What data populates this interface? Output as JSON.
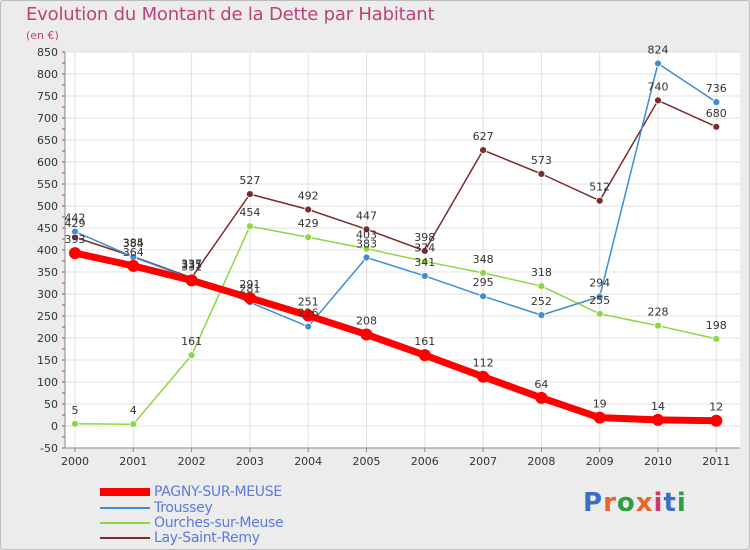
{
  "title": "Evolution du Montant de la Dette par Habitant",
  "subtitle": "(en €)",
  "logo": "Proxiti",
  "chart_data": {
    "type": "line",
    "x": [
      "2000",
      "2001",
      "2002",
      "2003",
      "2004",
      "2005",
      "2006",
      "2007",
      "2008",
      "2009",
      "2010",
      "2011"
    ],
    "yticks": [
      -50,
      0,
      50,
      100,
      150,
      200,
      250,
      300,
      350,
      400,
      450,
      500,
      550,
      600,
      650,
      700,
      750,
      800,
      850
    ],
    "ylim": [
      -50,
      850
    ],
    "grid": true,
    "legend_position": "bottom-left",
    "series": [
      {
        "name": "PAGNY-SUR-MEUSE",
        "color": "#ff0000",
        "values": [
          393,
          364,
          331,
          291,
          251,
          208,
          161,
          112,
          64,
          19,
          14,
          12
        ]
      },
      {
        "name": "Troussey",
        "color": "#3e8ed1",
        "values": [
          442,
          384,
          335,
          281,
          226,
          383,
          341,
          295,
          252,
          294,
          824,
          736
        ]
      },
      {
        "name": "Ourches-sur-Meuse",
        "color": "#8fd645",
        "values": [
          5,
          4,
          161,
          454,
          429,
          403,
          374,
          348,
          318,
          255,
          228,
          198
        ]
      },
      {
        "name": "Lay-Saint-Remy",
        "color": "#7b2d2d",
        "values": [
          429,
          385,
          337,
          527,
          492,
          447,
          398,
          627,
          573,
          512,
          740,
          680
        ]
      }
    ],
    "data_labels": [
      [
        "393",
        "364",
        "331",
        "291",
        "251",
        "208",
        "161",
        "112",
        "64",
        "19",
        "14",
        "12"
      ],
      [
        "442",
        "384",
        "335",
        "281",
        "226",
        "383",
        "341",
        "295",
        "252",
        "294",
        "824",
        "736"
      ],
      [
        "5",
        "4",
        "161",
        "454",
        "429",
        "403",
        "374",
        "348",
        "318",
        "255",
        "228",
        "198"
      ],
      [
        "429",
        "385",
        "337",
        "527",
        "492",
        "447",
        "398",
        "627",
        "573",
        "512",
        "740",
        "680"
      ]
    ]
  }
}
